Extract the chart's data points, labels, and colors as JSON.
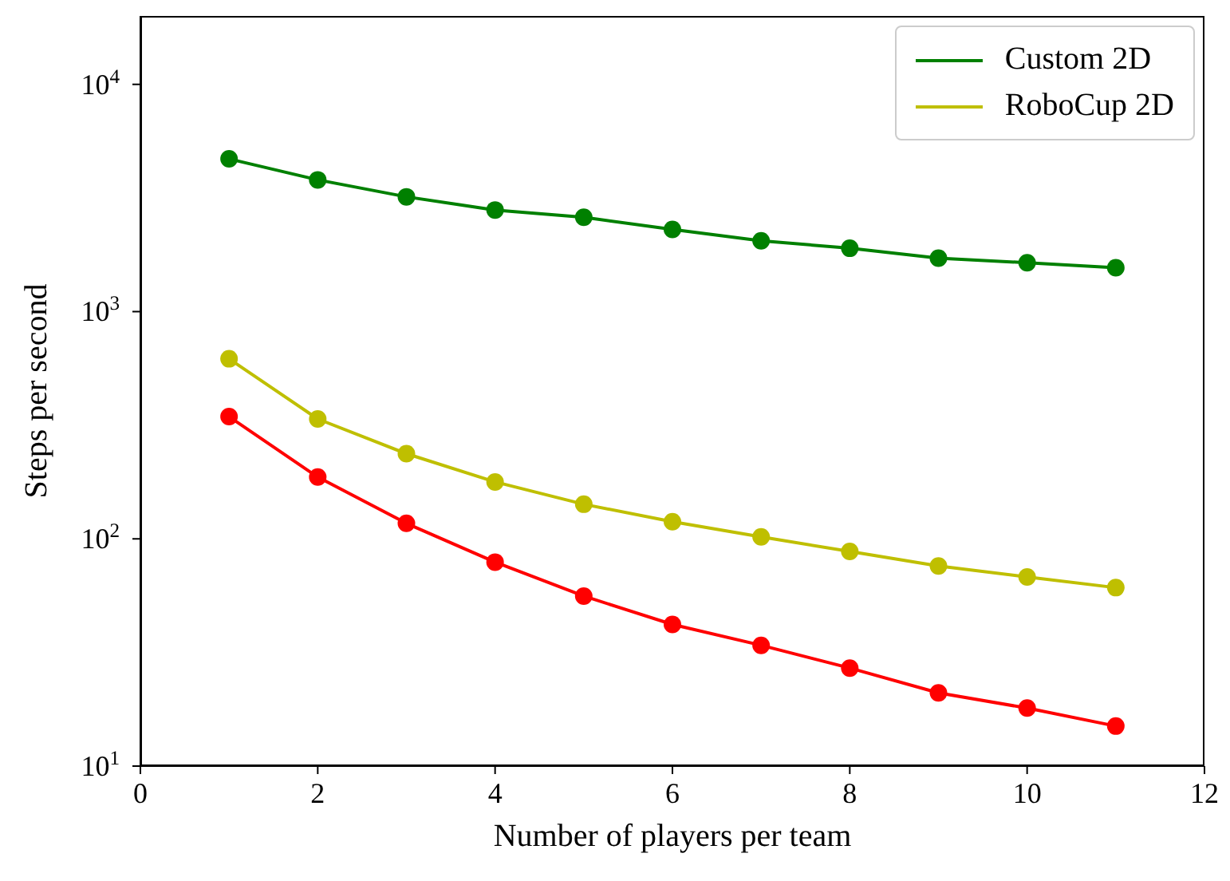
{
  "chart_data": {
    "type": "line",
    "xlabel": "Number of players per team",
    "ylabel": "Steps per second",
    "x": [
      1,
      2,
      3,
      4,
      5,
      6,
      7,
      8,
      9,
      10,
      11
    ],
    "series": [
      {
        "name": "Custom 2D",
        "color": "#008000",
        "values": [
          4700,
          3800,
          3200,
          2800,
          2600,
          2300,
          2050,
          1900,
          1720,
          1640,
          1560
        ]
      },
      {
        "name": "RoboCup 2D",
        "color": "#bfbf00",
        "values": [
          620,
          337,
          237,
          178,
          142,
          119,
          102,
          88,
          76,
          68,
          61
        ]
      },
      {
        "color": "#ff0000",
        "values": [
          345,
          187,
          117,
          79,
          56,
          42,
          34,
          27,
          21,
          18,
          15
        ]
      }
    ],
    "xlim": [
      0,
      12
    ],
    "xticks": [
      0,
      2,
      4,
      6,
      8,
      10,
      12
    ],
    "ylim": [
      10,
      20000
    ],
    "yticks": [
      {
        "value": 10,
        "label": "10$^{1}$"
      },
      {
        "value": 100,
        "label": "10$^{2}$"
      },
      {
        "value": 1000,
        "label": "10$^{3}$"
      },
      {
        "value": 10000,
        "label": "10$^{4}$"
      }
    ],
    "log": "y",
    "grid": false,
    "legend": "top right",
    "marker": "circle",
    "line_style": "solid"
  }
}
